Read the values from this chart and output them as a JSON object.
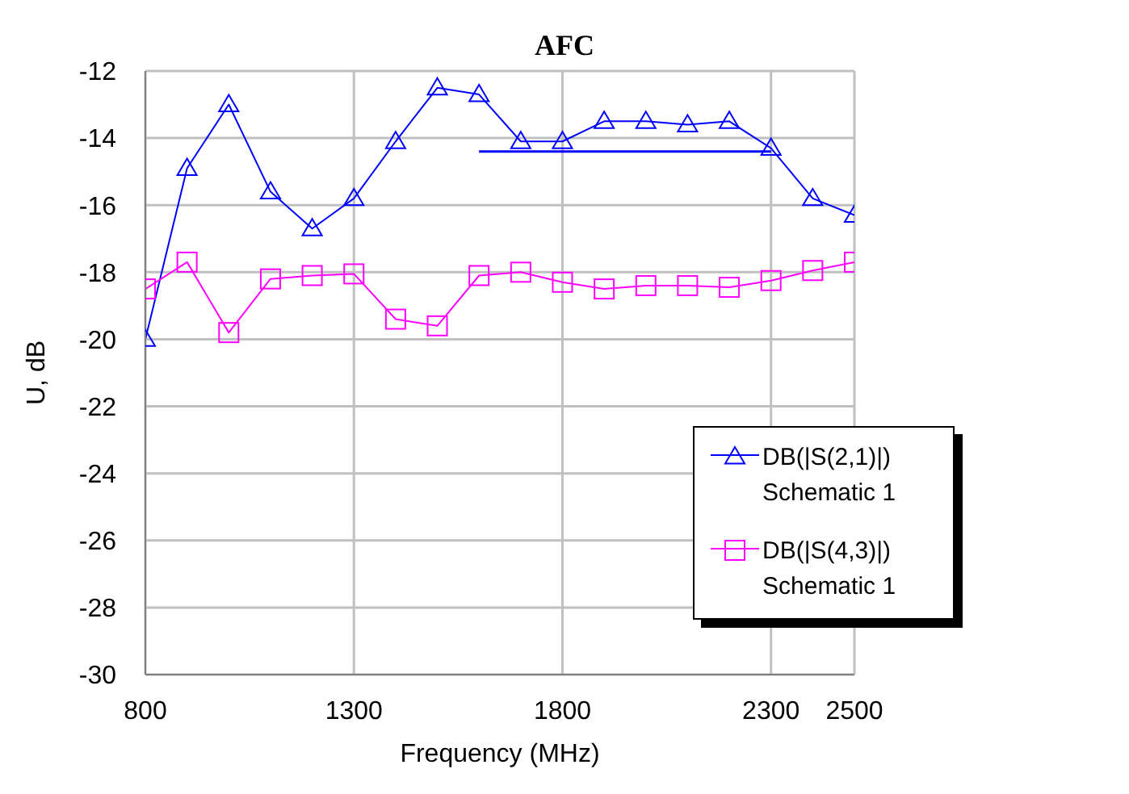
{
  "chart_data": {
    "type": "line",
    "title": "AFC",
    "xlabel": "Frequency (MHz)",
    "ylabel": "U, dB",
    "x": [
      800,
      900,
      1000,
      1100,
      1200,
      1300,
      1400,
      1500,
      1600,
      1700,
      1800,
      1900,
      2000,
      2100,
      2200,
      2300,
      2400,
      2500
    ],
    "series": [
      {
        "name": "DB(|S(2,1)|) Schematic 1",
        "color": "#0000ff",
        "marker": "triangle",
        "values": [
          -20,
          -14.9,
          -13,
          -15.6,
          -16.7,
          -15.8,
          -14.1,
          -12.5,
          -12.7,
          -14.1,
          -14.1,
          -13.5,
          -13.5,
          -13.6,
          -13.5,
          -14.3,
          -15.8,
          -16.3
        ]
      },
      {
        "name": "DB(|S(4,3)|) Schematic 1",
        "color": "#ff00ff",
        "marker": "square",
        "values": [
          -18.5,
          -17.7,
          -19.8,
          -18.2,
          -18.1,
          -18.05,
          -19.4,
          -19.6,
          -18.1,
          -18.0,
          -18.3,
          -18.5,
          -18.4,
          -18.4,
          -18.45,
          -18.25,
          -17.95,
          -17.7
        ]
      },
      {
        "type": "line",
        "color": "#0000ff",
        "marker": "none",
        "x": [
          1600,
          2300
        ],
        "values": [
          -14.4,
          -14.4
        ]
      }
    ],
    "xlim": [
      800,
      2500
    ],
    "xticks": [
      800,
      1300,
      1800,
      2300,
      2500
    ],
    "ylim": [
      -30,
      -12
    ],
    "yticks": [
      -30,
      -28,
      -26,
      -24,
      -22,
      -20,
      -18,
      -16,
      -14,
      -12
    ],
    "grid": true,
    "legend": "bottom right"
  }
}
